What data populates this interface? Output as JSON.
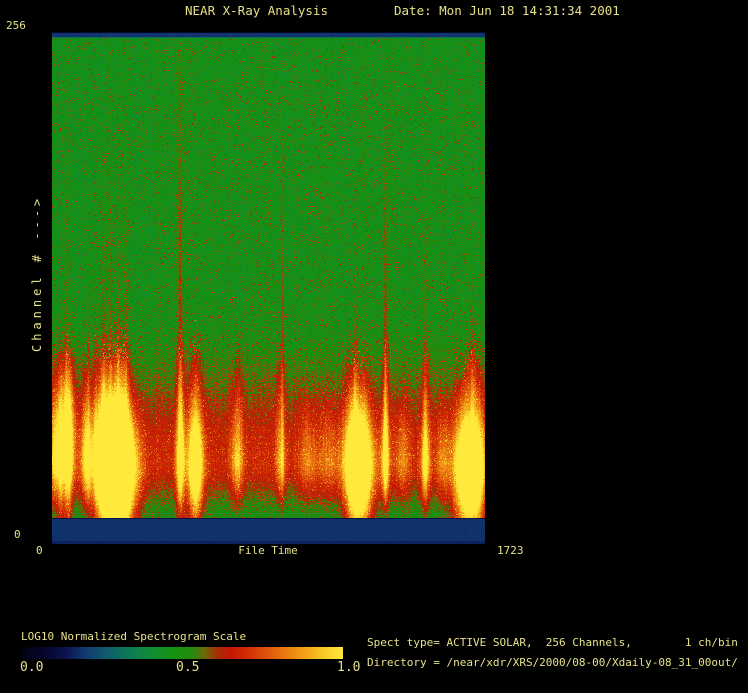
{
  "window": {
    "title": "NEAR X-Ray Analysis",
    "date": "Date: Mon Jun 18 14:31:34 2001"
  },
  "axes": {
    "y_max": "256",
    "y_min": "0",
    "y_label": "Channel # --->",
    "x_min": "0",
    "x_label": "File Time",
    "x_max": "1723"
  },
  "colorbar": {
    "label": "LOG10 Normalized Spectrogram Scale",
    "ticks": [
      "0.0",
      "0.5",
      "1.0"
    ]
  },
  "info": {
    "line1": "Spect type= ACTIVE SOLAR,  256 Channels,        1 ch/bin",
    "line2": "Directory = /near/xdr/XRS/2000/08-00/Xdaily-08_31_00out/"
  },
  "colors": {
    "text": "#e7e18a",
    "background": "#000000",
    "axis_band_blue": "#123b72"
  },
  "chart_data": {
    "type": "heatmap",
    "title": "NEAR X-Ray Analysis",
    "date": "Mon Jun 18 14:31:34 2001",
    "xlabel": "File Time",
    "x_range": [
      0,
      1723
    ],
    "ylabel": "Channel #",
    "y_range": [
      0,
      256
    ],
    "scale_label": "LOG10 Normalized Spectrogram Scale",
    "scale_ticks": [
      0.0,
      0.5,
      1.0
    ],
    "spect_type": "ACTIVE SOLAR",
    "channels": 256,
    "ch_per_bin": 1,
    "directory": "/near/xdr/XRS/2000/08-00/Xdaily-08_31_00out/",
    "colormap_stops": [
      [
        0.0,
        "#020212"
      ],
      [
        0.07,
        "#05052c"
      ],
      [
        0.14,
        "#0b1551"
      ],
      [
        0.2,
        "#123b72"
      ],
      [
        0.27,
        "#0f5e6b"
      ],
      [
        0.34,
        "#0e7d52"
      ],
      [
        0.41,
        "#0f8e2e"
      ],
      [
        0.47,
        "#149213"
      ],
      [
        0.53,
        "#238a0e"
      ],
      [
        0.57,
        "#6f6607"
      ],
      [
        0.61,
        "#a62e05"
      ],
      [
        0.65,
        "#c61505"
      ],
      [
        0.71,
        "#d33204"
      ],
      [
        0.79,
        "#e5650f"
      ],
      [
        0.87,
        "#f19b15"
      ],
      [
        0.94,
        "#f9ca28"
      ],
      [
        1.0,
        "#ffe93a"
      ]
    ],
    "spectrogram": {
      "background_value": 0.47,
      "band": {
        "center_ch": 30,
        "sigma_up_ch": 32,
        "sigma_down_ch": 14,
        "amp": 0.21
      },
      "top_band": {
        "rows": 6,
        "value": 0.19
      },
      "bottom_band": {
        "rows": 25,
        "value": 0.185
      },
      "events": [
        {
          "t": 8,
          "w": 10,
          "ch_top": 80,
          "amp": 0.26,
          "core": 0.08,
          "ch_core": 35,
          "core_w": 12,
          "core_h": 20
        },
        {
          "t": 32,
          "w": 10,
          "ch_top": 87,
          "amp": 0.3,
          "core": 0.18,
          "ch_core": 43,
          "core_w": 16,
          "core_h": 21
        },
        {
          "t": 64,
          "w": 12,
          "ch_top": 85,
          "amp": 0.33,
          "core": 0.3,
          "ch_core": 48,
          "core_w": 20,
          "core_h": 24
        },
        {
          "t": 135,
          "w": 12,
          "ch_top": 78,
          "amp": 0.25,
          "core": 0.1,
          "ch_core": 35,
          "core_w": 20,
          "core_h": 19
        },
        {
          "t": 199,
          "w": 20,
          "ch_top": 83,
          "amp": 0.33,
          "core": 0.24,
          "ch_core": 30,
          "core_w": 36,
          "core_h": 24
        },
        {
          "t": 247,
          "w": 28,
          "ch_top": 84,
          "amp": 0.38,
          "core": 0.34,
          "ch_core": 24,
          "core_w": 52,
          "core_h": 24
        },
        {
          "t": 283,
          "w": 24,
          "ch_top": 81,
          "amp": 0.38,
          "core": 0.36,
          "ch_core": 22,
          "core_w": 44,
          "core_h": 21
        },
        {
          "t": 509,
          "w": 12,
          "ch_top": 83,
          "amp": 0.3,
          "core": 0.12,
          "ch_core": 32,
          "core_w": 16,
          "core_h": 19
        },
        {
          "t": 569,
          "w": 18,
          "ch_top": 82,
          "amp": 0.36,
          "core": 0.3,
          "ch_core": 26,
          "core_w": 24,
          "core_h": 20
        },
        {
          "t": 736,
          "w": 16,
          "ch_top": 80,
          "amp": 0.25,
          "core": 0.05,
          "ch_core": 30,
          "core_w": 20,
          "core_h": 16
        },
        {
          "t": 907,
          "w": 14,
          "ch_top": 86,
          "amp": 0.23,
          "core": 0
        },
        {
          "t": 1015,
          "w": 24,
          "ch_top": 66,
          "amp": 0.17,
          "core": 0
        },
        {
          "t": 1098,
          "w": 32,
          "ch_top": 61,
          "amp": 0.15,
          "core": 0
        },
        {
          "t": 1194,
          "w": 20,
          "ch_top": 82,
          "amp": 0.33,
          "core": 0.22,
          "ch_core": 26,
          "core_w": 32,
          "core_h": 21
        },
        {
          "t": 1233,
          "w": 24,
          "ch_top": 77,
          "amp": 0.37,
          "core": 0.32,
          "ch_core": 22,
          "core_w": 40,
          "core_h": 21
        },
        {
          "t": 1325,
          "w": 10,
          "ch_top": 83,
          "amp": 0.27,
          "core": 0.1,
          "ch_core": 30,
          "core_w": 16,
          "core_h": 16
        },
        {
          "t": 1393,
          "w": 20,
          "ch_top": 64,
          "amp": 0.18,
          "core": 0
        },
        {
          "t": 1484,
          "w": 12,
          "ch_top": 80,
          "amp": 0.27,
          "core": 0.1,
          "ch_core": 26,
          "core_w": 16,
          "core_h": 16
        },
        {
          "t": 1552,
          "w": 20,
          "ch_top": 62,
          "amp": 0.16,
          "core": 0
        },
        {
          "t": 1639,
          "w": 24,
          "ch_top": 75,
          "amp": 0.36,
          "core": 0.3,
          "ch_core": 19,
          "core_w": 40,
          "core_h": 22
        },
        {
          "t": 1687,
          "w": 20,
          "ch_top": 82,
          "amp": 0.33,
          "core": 0.24,
          "ch_core": 19,
          "core_w": 32,
          "core_h": 21
        },
        {
          "t": 52,
          "w": 4,
          "ch_top": 166,
          "amp": 0.1,
          "line": true
        },
        {
          "t": 143,
          "w": 4,
          "ch_top": 137,
          "amp": 0.1,
          "line": true
        },
        {
          "t": 171,
          "w": 4,
          "ch_top": 150,
          "amp": 0.11,
          "line": true
        },
        {
          "t": 203,
          "w": 6,
          "ch_top": 195,
          "amp": 0.16,
          "line": true
        },
        {
          "t": 231,
          "w": 5,
          "ch_top": 171,
          "amp": 0.13,
          "line": true
        },
        {
          "t": 263,
          "w": 5,
          "ch_top": 166,
          "amp": 0.12,
          "line": true
        },
        {
          "t": 294,
          "w": 5,
          "ch_top": 155,
          "amp": 0.12,
          "line": true
        },
        {
          "t": 509,
          "w": 6,
          "ch_top": 251,
          "amp": 0.22,
          "line": true
        },
        {
          "t": 915,
          "w": 5,
          "ch_top": 196,
          "amp": 0.14,
          "line": true
        },
        {
          "t": 1205,
          "w": 5,
          "ch_top": 128,
          "amp": 0.14,
          "line": true
        },
        {
          "t": 1325,
          "w": 6,
          "ch_top": 195,
          "amp": 0.2,
          "line": true
        },
        {
          "t": 1484,
          "w": 5,
          "ch_top": 148,
          "amp": 0.13,
          "line": true
        },
        {
          "t": 1671,
          "w": 5,
          "ch_top": 150,
          "amp": 0.12,
          "line": true
        }
      ]
    }
  }
}
